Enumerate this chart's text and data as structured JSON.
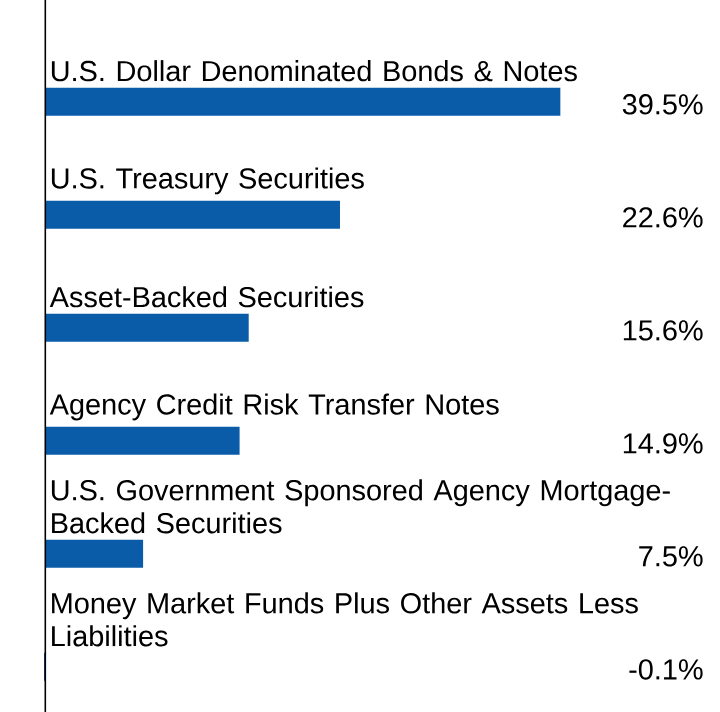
{
  "chart_data": {
    "type": "bar",
    "orientation": "horizontal",
    "categories": [
      "U.S. Dollar Denominated Bonds & Notes",
      "U.S. Treasury Securities",
      "Asset-Backed Securities",
      "Agency Credit Risk Transfer Notes",
      "U.S. Government Sponsored Agency Mortgage-Backed Securities",
      "Money Market Funds Plus Other Assets Less Liabilities"
    ],
    "values": [
      39.5,
      22.6,
      15.6,
      14.9,
      7.5,
      -0.1
    ],
    "value_labels": [
      "39.5%",
      "22.6%",
      "15.6%",
      "14.9%",
      "7.5%",
      "-0.1%"
    ],
    "color": "#0a5ca8"
  }
}
